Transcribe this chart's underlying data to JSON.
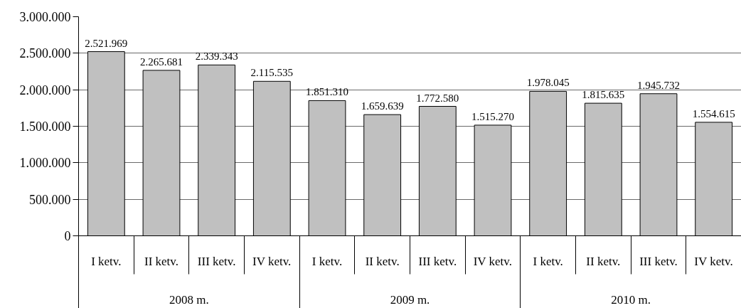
{
  "chart_data": {
    "type": "bar",
    "categories": [
      "I ketv.",
      "II ketv.",
      "III ketv.",
      "IV ketv.",
      "I ketv.",
      "II ketv.",
      "III ketv.",
      "IV ketv.",
      "I ketv.",
      "II ketv.",
      "III ketv.",
      "IV ketv."
    ],
    "annotations": [
      "2008 m.",
      "2009 m.",
      "2010 m."
    ],
    "values": [
      2521969,
      2265681,
      2339343,
      2115535,
      1851310,
      1659639,
      1772580,
      1515270,
      1978045,
      1815635,
      1945732,
      1554615
    ],
    "value_labels": [
      "2.521.969",
      "2.265.681",
      "2.339.343",
      "2.115.535",
      "1.851.310",
      "1.659.639",
      "1.772.580",
      "1.515.270",
      "1.978.045",
      "1.815.635",
      "1.945.732",
      "1.554.615"
    ],
    "color": "#c0c0c0",
    "ylim": [
      0,
      3000000
    ],
    "yticks": [
      0,
      {
        "value": 500000,
        "label": "500.000"
      },
      {
        "value": 1000000,
        "label": "1.000.000"
      },
      {
        "value": 1500000,
        "label": "1.500.000"
      },
      {
        "value": 2000000,
        "label": "2.000.000"
      },
      {
        "value": 2500000,
        "label": "2.500.000"
      },
      {
        "value": 3000000,
        "label": "3.000.000"
      }
    ],
    "grid": "y"
  }
}
